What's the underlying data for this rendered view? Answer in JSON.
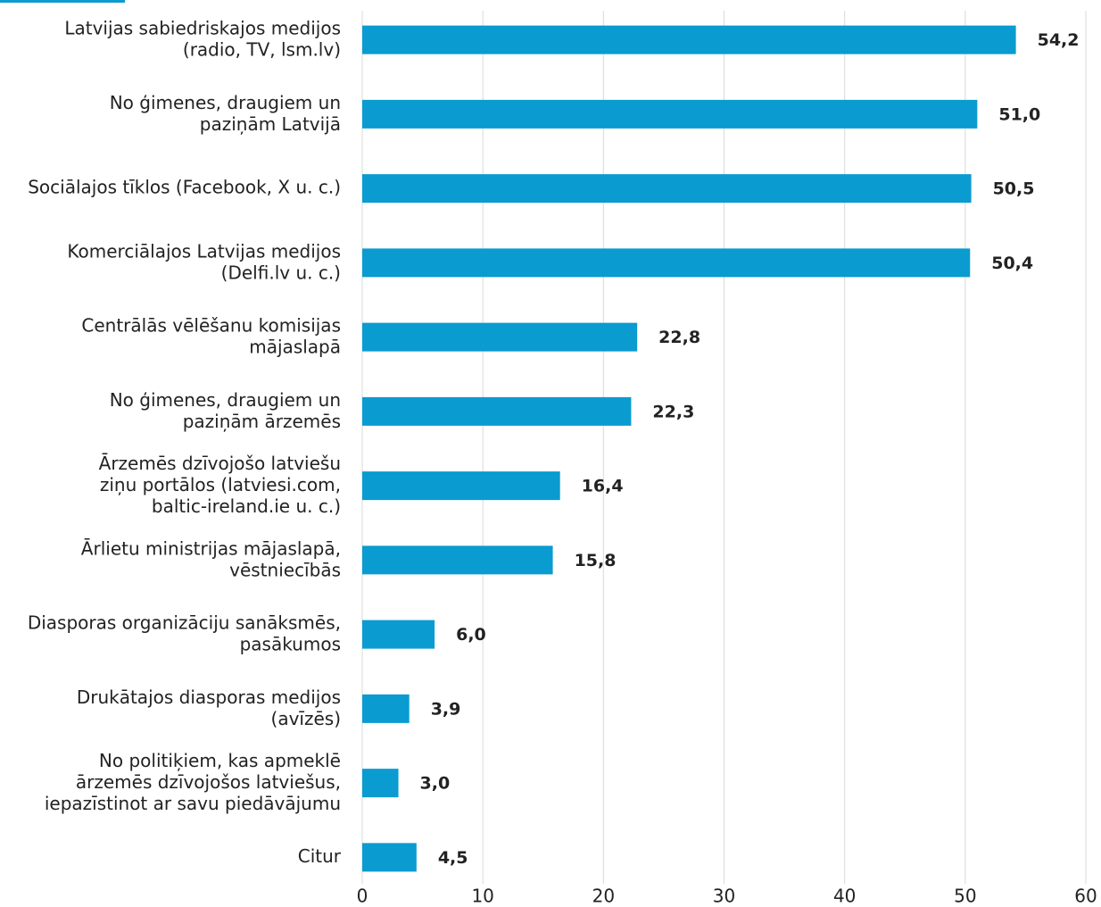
{
  "chart_data": {
    "type": "barh",
    "categories": [
      "Latvijas sabiedriskajos medijos\n(radio, TV, lsm.lv)",
      "No ģimenes, draugiem un\npaziņām Latvijā",
      "Sociālajos tīklos (Facebook, X u. c.)",
      "Komerciālajos Latvijas medijos\n(Delfi.lv u. c.)",
      "Centrālās vēlēšanu komisijas\nmājaslapā",
      "No ģimenes, draugiem un\npaziņām ārzemēs",
      "Ārzemēs dzīvojošo latviešu\nziņu portālos (latviesi.com,\nbaltic-ireland.ie u. c.)",
      "Ārlietu ministrijas mājaslapā,\nvēstniecībās",
      "Diasporas organizāciju sanāksmēs,\npasākumos",
      "Drukātajos diasporas medijos\n(avīzēs)",
      "No politiķiem, kas apmeklē\nārzemēs dzīvojošos latviešus,\niepazīstinot ar savu piedāvājumu",
      "Citur"
    ],
    "values": [
      54.2,
      51.0,
      50.5,
      50.4,
      22.8,
      22.3,
      16.4,
      15.8,
      6.0,
      3.9,
      3.0,
      4.5
    ],
    "value_labels": [
      "54,2",
      "51,0",
      "50,5",
      "50,4",
      "22,8",
      "22,3",
      "16,4",
      "15,8",
      "6,0",
      "3,9",
      "3,0",
      "4,5"
    ],
    "color": "#0a9bd0",
    "xlim": [
      0,
      60
    ],
    "xticks": [
      0,
      10,
      20,
      30,
      40,
      50,
      60
    ],
    "grid": true
  }
}
